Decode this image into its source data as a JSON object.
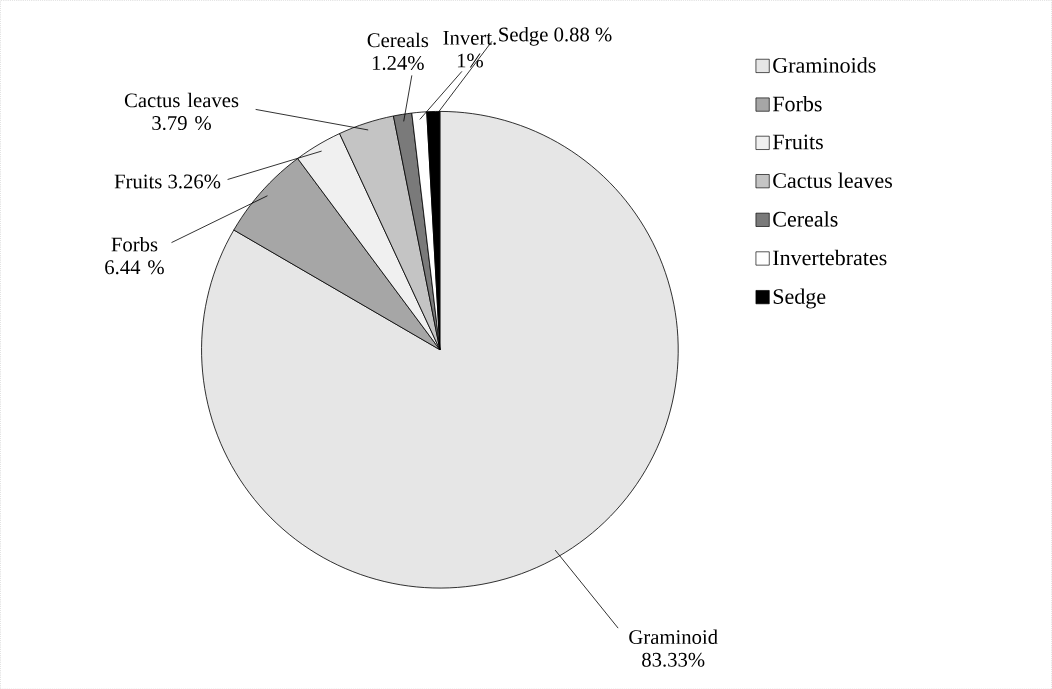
{
  "chart_data": {
    "type": "pie",
    "categories": [
      "Graminoids",
      "Forbs",
      "Fruits",
      "Cactus leaves",
      "Cereals",
      "Invertebrates",
      "Sedge"
    ],
    "values": [
      83.33,
      6.44,
      3.26,
      3.79,
      1.24,
      1,
      0.88
    ],
    "colors": [
      "#e6e6e6",
      "#a6a6a6",
      "#f0f0f0",
      "#c4c4c4",
      "#7a7a7a",
      "#ffffff",
      "#000000"
    ],
    "value_labels": [
      "Graminoid 83.33%",
      "Forbs 6.44 %",
      "Fruits 3.26%",
      "Cactus leaves 3.79 %",
      "Cereals 1.24%",
      "Invert. 1%",
      "Sedge 0.88 %"
    ],
    "legend": "right"
  }
}
